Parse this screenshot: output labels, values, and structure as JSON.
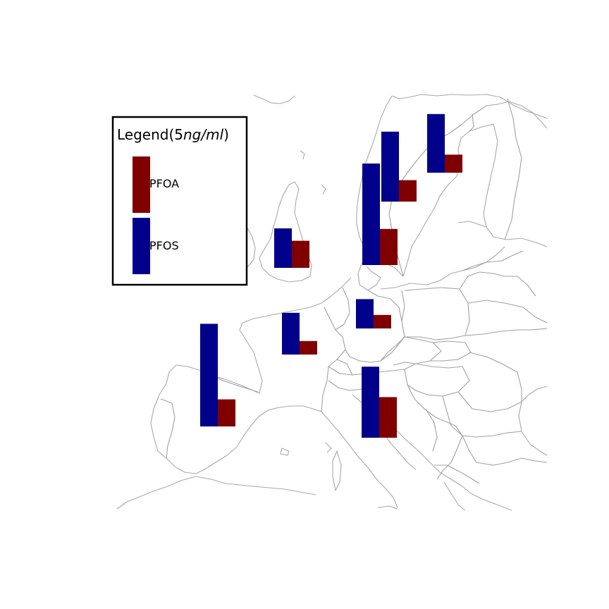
{
  "legend": {
    "title_prefix": "Legend(5",
    "title_italic": "ng/ml",
    "title_suffix": ")",
    "items": [
      {
        "label": "PFOA",
        "color": "#800000",
        "value": 5
      },
      {
        "label": "PFOS",
        "color": "#00008b",
        "value": 5
      }
    ]
  },
  "chart_data": {
    "type": "bar",
    "unit": "ng/ml",
    "series": [
      {
        "name": "PFOA",
        "color": "#800000"
      },
      {
        "name": "PFOS",
        "color": "#00008b"
      }
    ],
    "locations": [
      {
        "id": "iberia",
        "PFOS": 9.1,
        "PFOA": 2.4
      },
      {
        "id": "central-france",
        "PFOS": 3.7,
        "PFOA": 1.2
      },
      {
        "id": "southern-uk",
        "PFOS": 3.5,
        "PFOA": 2.4
      },
      {
        "id": "central-germany",
        "PFOS": 2.6,
        "PFOA": 1.2
      },
      {
        "id": "northern-italy",
        "PFOS": 6.3,
        "PFOA": 3.6
      },
      {
        "id": "southern-norway",
        "PFOS": 9.0,
        "PFOA": 3.2
      },
      {
        "id": "central-sweden",
        "PFOS": 6.2,
        "PFOA": 1.9
      },
      {
        "id": "northern-sweden",
        "PFOS": 5.2,
        "PFOA": 1.6
      }
    ]
  }
}
